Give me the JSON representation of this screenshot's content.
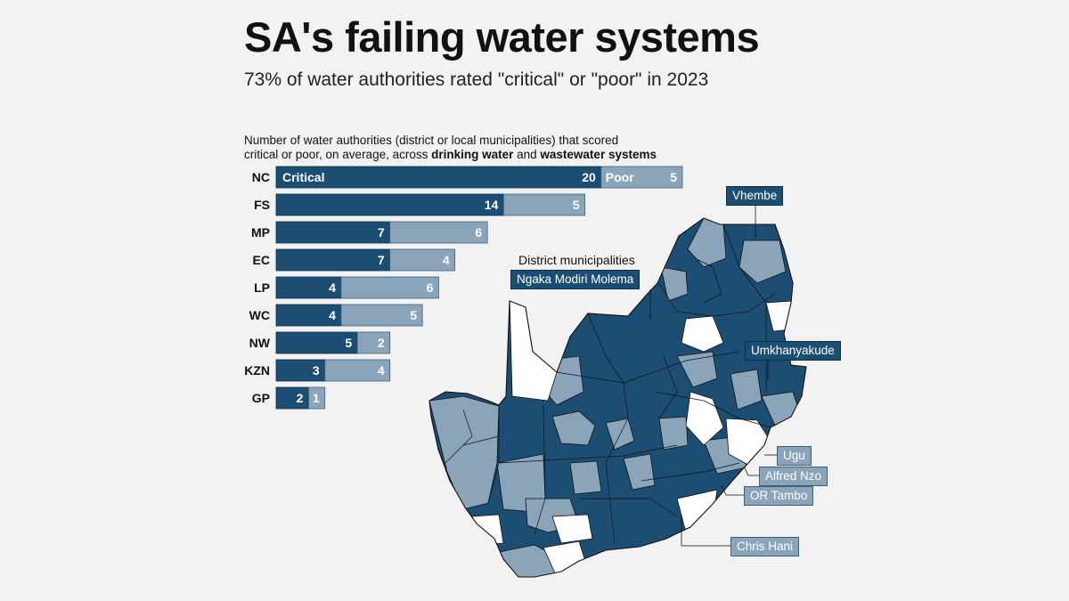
{
  "header": {
    "title": "SA's failing water systems",
    "subtitle": "73% of water authorities rated \"critical\" or \"poor\" in 2023"
  },
  "chart_note": {
    "line1": "Number of water authorities (district or local municipalities) that scored",
    "line2_prefix": "critical or poor, on average, across ",
    "bold1": "drinking water",
    "joiner": " and ",
    "bold2": "wastewater systems"
  },
  "chart_data": {
    "type": "bar",
    "orientation": "horizontal",
    "stacked": true,
    "categories": [
      "NC",
      "FS",
      "MP",
      "EC",
      "LP",
      "WC",
      "NW",
      "KZN",
      "GP"
    ],
    "series": [
      {
        "name": "Critical",
        "values": [
          20,
          14,
          7,
          7,
          4,
          4,
          5,
          3,
          2
        ],
        "color": "#1c4e73"
      },
      {
        "name": "Poor",
        "values": [
          5,
          5,
          6,
          4,
          6,
          5,
          2,
          4,
          1
        ],
        "color": "#8aa4ba"
      }
    ],
    "xlim": [
      0,
      25
    ],
    "grid": false,
    "legend_position": "inside-first-bar"
  },
  "map": {
    "heading": "District municipalities",
    "colors": {
      "critical": "#1c4e73",
      "poor": "#8aa4ba",
      "other": "#ffffff",
      "border": "#111111"
    },
    "callouts": [
      {
        "label": "Vhembe",
        "category": "critical"
      },
      {
        "label": "Ngaka Modiri Molema",
        "category": "critical"
      },
      {
        "label": "Umkhanyakude",
        "category": "critical"
      },
      {
        "label": "Ugu",
        "category": "poor"
      },
      {
        "label": "Alfred Nzo",
        "category": "poor"
      },
      {
        "label": "OR Tambo",
        "category": "poor"
      },
      {
        "label": "Chris Hani",
        "category": "poor"
      }
    ]
  }
}
